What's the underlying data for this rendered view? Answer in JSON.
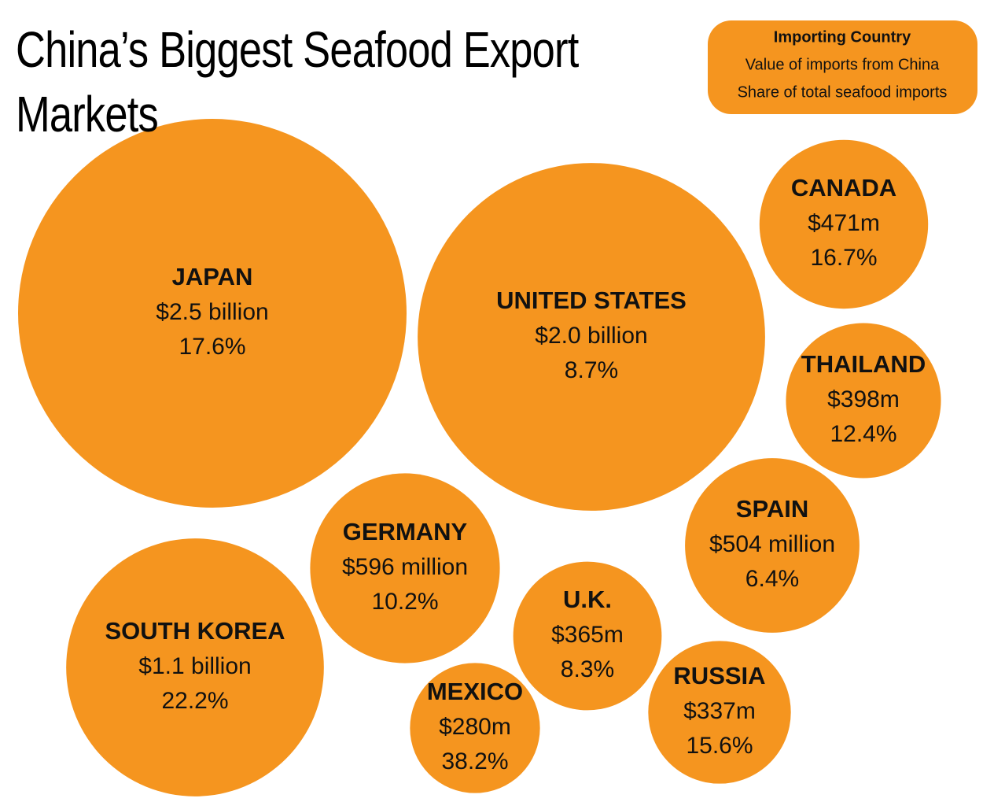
{
  "chart_data": {
    "type": "bubble",
    "title": "China’s Biggest Seafood Export Markets",
    "category_label": "Importing Country",
    "color": "#f5951f",
    "categories": [
      "JAPAN",
      "UNITED STATES",
      "SOUTH KOREA",
      "GERMANY",
      "SPAIN",
      "CANADA",
      "THAILAND",
      "U.K.",
      "RUSSIA",
      "MEXICO"
    ],
    "series": [
      {
        "name": "Value of imports from China",
        "values": [
          2500000000,
          2000000000,
          1100000000,
          596000000,
          504000000,
          471000000,
          398000000,
          365000000,
          337000000,
          280000000
        ],
        "value_labels": [
          "$2.5 billion",
          "$2.0 billion",
          "$1.1 billion",
          "$596 million",
          "$504 million",
          "$471m",
          "$398m",
          "$365m",
          "$337m",
          "$280m"
        ]
      },
      {
        "name": "Share of total seafood imports",
        "values": [
          17.6,
          8.7,
          22.2,
          10.2,
          6.4,
          16.7,
          12.4,
          8.3,
          15.6,
          38.2
        ],
        "value_labels": [
          "17.6%",
          "8.7%",
          "22.2%",
          "10.2%",
          "6.4%",
          "16.7%",
          "12.4%",
          "8.3%",
          "15.6%",
          "38.2%"
        ]
      }
    ]
  }
}
